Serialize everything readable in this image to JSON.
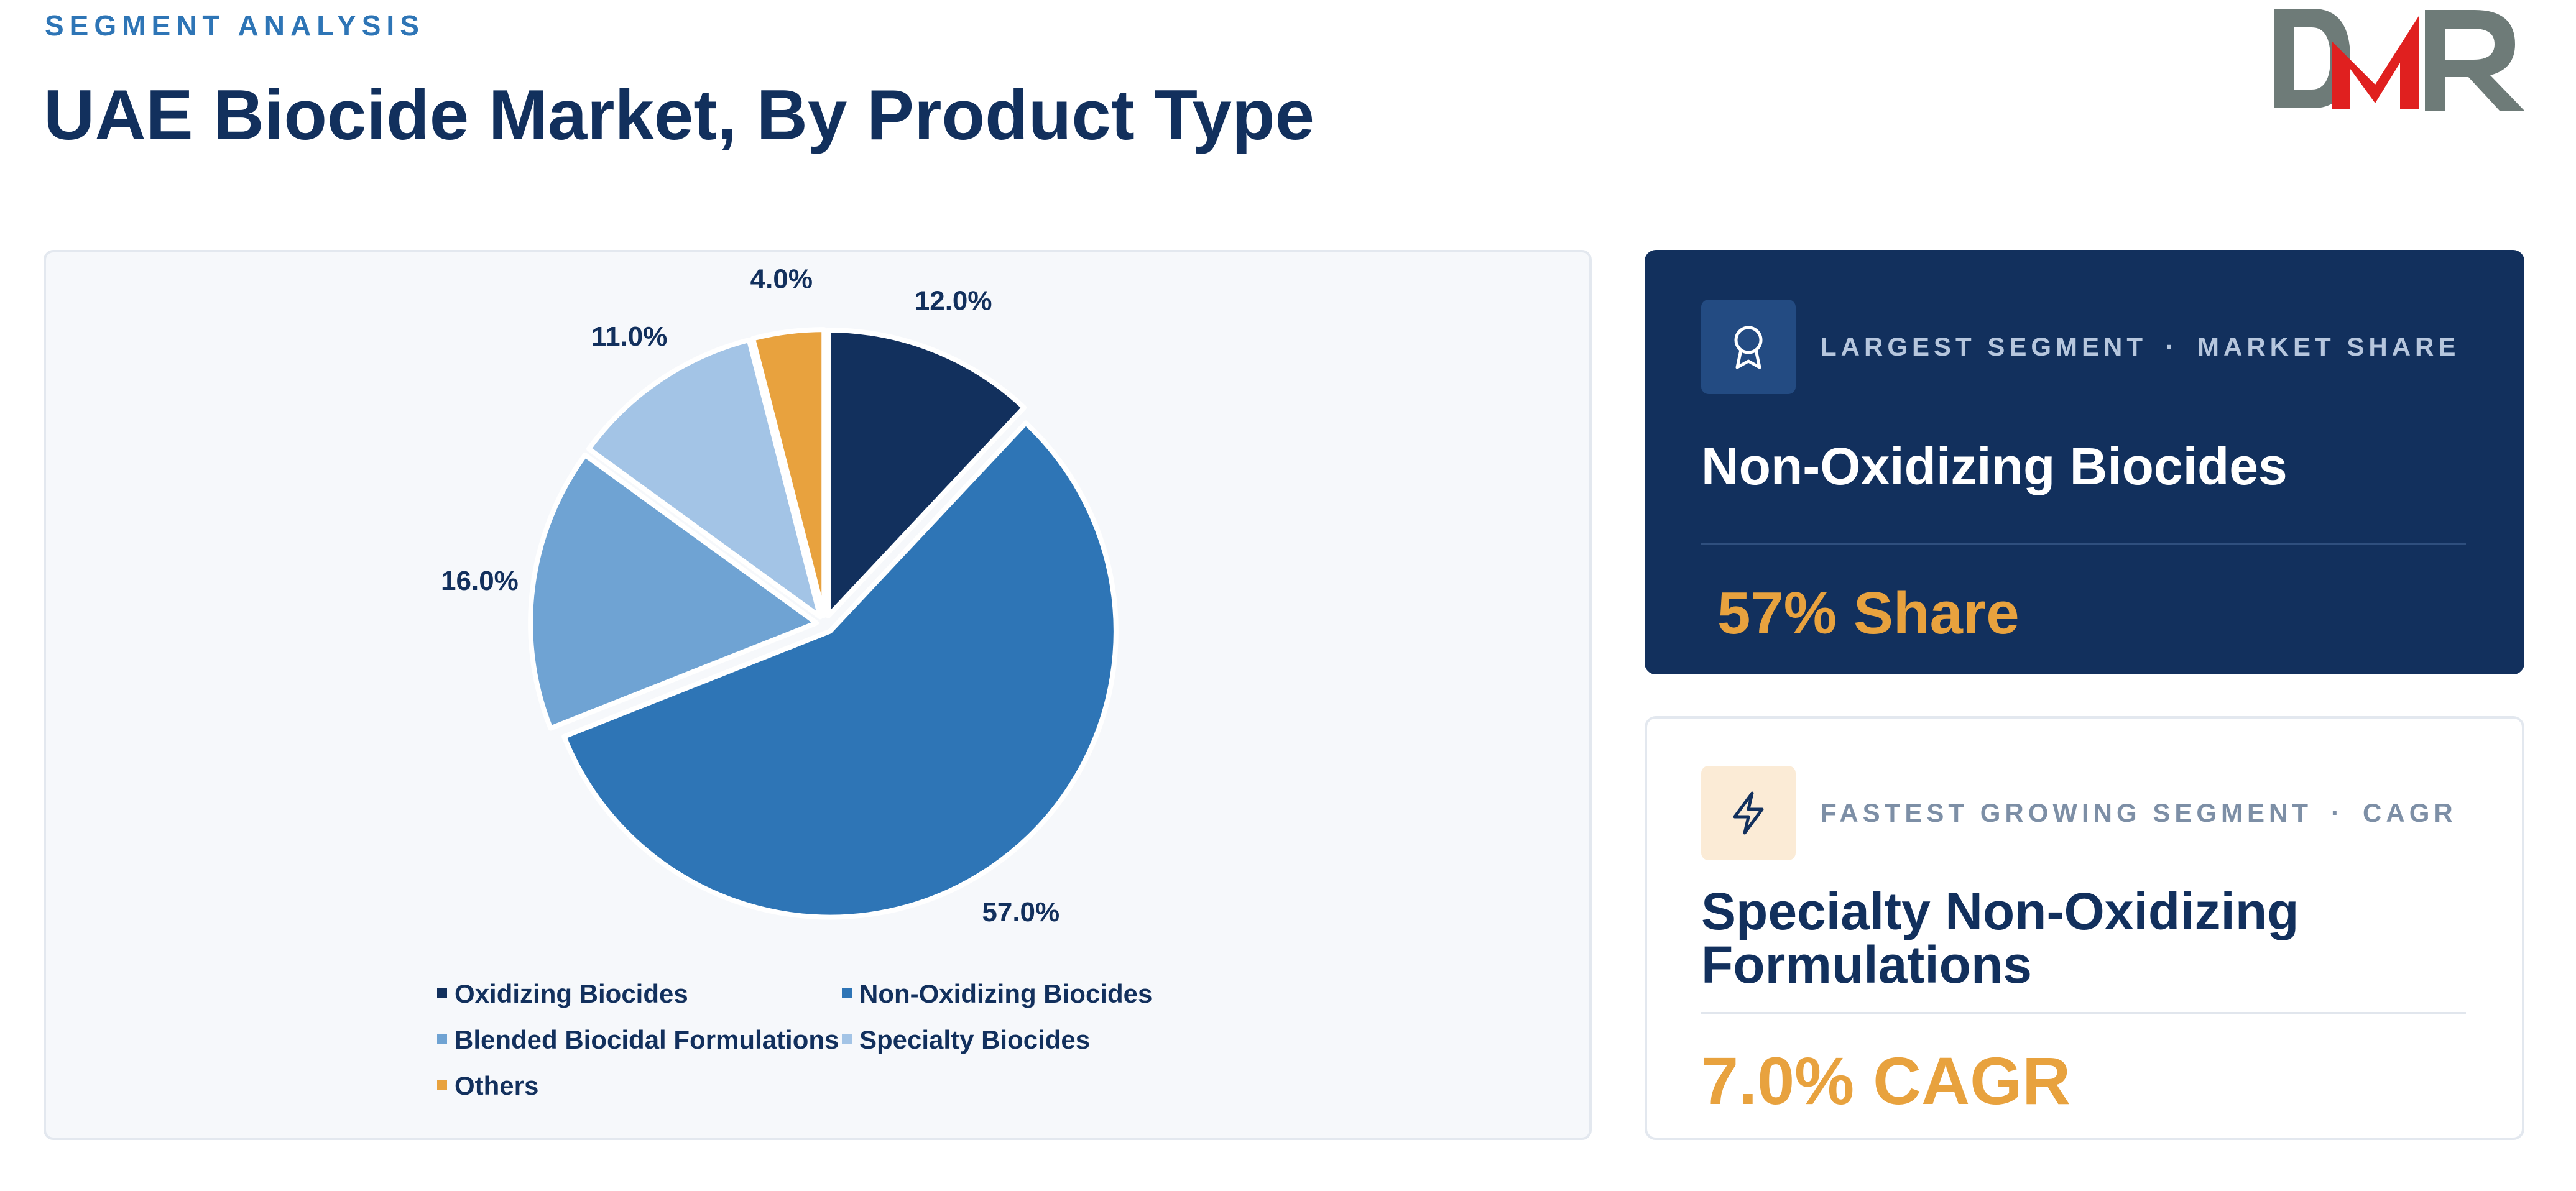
{
  "header": {
    "eyebrow": "SEGMENT ANALYSIS",
    "title": "UAE Biocide Market, By Product Type",
    "logo_text": "DMR"
  },
  "colors": {
    "navy": "#12305D",
    "blue": "#2E75B6",
    "mid_blue": "#6FA3D3",
    "light_blue": "#A3C4E6",
    "orange": "#E8A23E"
  },
  "chart_data": {
    "type": "pie",
    "title": "",
    "start_angle_deg": 0,
    "direction": "clockwise",
    "categories": [
      "Oxidizing Biocides",
      "Non-Oxidizing Biocides",
      "Blended Biocidal Formulations",
      "Specialty Biocides",
      "Others"
    ],
    "values": [
      12.0,
      57.0,
      16.0,
      11.0,
      4.0
    ],
    "labels": [
      "12.0%",
      "57.0%",
      "16.0%",
      "11.0%",
      "4.0%"
    ],
    "colors": [
      "#12305D",
      "#2E75B6",
      "#6FA3D3",
      "#A3C4E6",
      "#E8A23E"
    ],
    "legend_position": "bottom"
  },
  "cards": {
    "largest": {
      "icon": "award-ribbon-icon",
      "kicker_left": "LARGEST SEGMENT",
      "separator": "·",
      "kicker_right": "MARKET SHARE",
      "segment": "Non-Oxidizing Biocides",
      "metric": "57% Share"
    },
    "fastest": {
      "icon": "lightning-bolt-icon",
      "kicker_left": "FASTEST GROWING SEGMENT",
      "separator": "·",
      "kicker_right": "CAGR",
      "segment": "Specialty Non-Oxidizing Formulations",
      "metric": "7.0% CAGR"
    }
  }
}
